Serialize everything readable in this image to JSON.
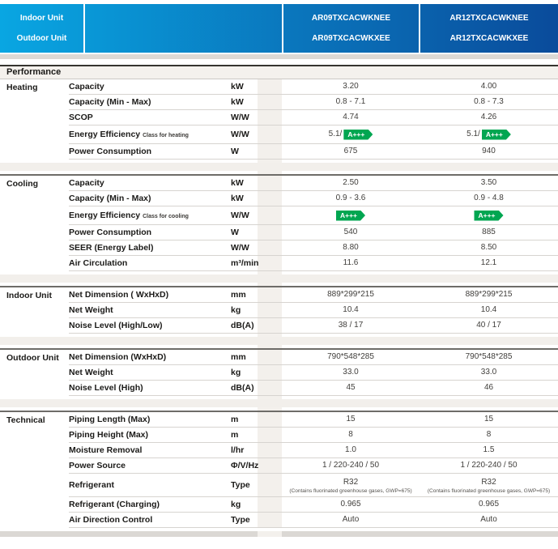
{
  "header": {
    "indoor_label": "Indoor Unit",
    "outdoor_label": "Outdoor Unit",
    "models": [
      {
        "indoor": "AR09TXCACWKNEE",
        "outdoor": "AR09TXCACWKXEE"
      },
      {
        "indoor": "AR12TXCACWKNEE",
        "outdoor": "AR12TXCACWKXEE"
      }
    ],
    "gradient_left": "#09a6e2",
    "gradient_right": "#0a4b9b"
  },
  "performance_title": "Performance",
  "energy_badge_color": "#00a651",
  "sections": [
    {
      "group": "Heating",
      "rows": [
        {
          "label": "Capacity",
          "unit": "kW",
          "values": [
            {
              "text": "3.20"
            },
            {
              "text": "4.00"
            }
          ]
        },
        {
          "label": "Capacity (Min - Max)",
          "unit": "kW",
          "values": [
            {
              "text": "0.8 - 7.1"
            },
            {
              "text": "0.8 - 7.3"
            }
          ]
        },
        {
          "label": "SCOP",
          "unit": "W/W",
          "values": [
            {
              "text": "4.74"
            },
            {
              "text": "4.26"
            }
          ]
        },
        {
          "label": "Energy Efficiency",
          "sublabel": "Class for heating",
          "unit": "W/W",
          "values": [
            {
              "text": "5.1/",
              "badge": "A+++"
            },
            {
              "text": "5.1/",
              "badge": "A+++"
            }
          ]
        },
        {
          "label": "Power Consumption",
          "unit": "W",
          "values": [
            {
              "text": "675"
            },
            {
              "text": "940"
            }
          ]
        }
      ]
    },
    {
      "group": "Cooling",
      "rows": [
        {
          "label": "Capacity",
          "unit": "kW",
          "values": [
            {
              "text": "2.50"
            },
            {
              "text": "3.50"
            }
          ]
        },
        {
          "label": "Capacity (Min - Max)",
          "unit": "kW",
          "values": [
            {
              "text": "0.9 - 3.6"
            },
            {
              "text": "0.9 - 4.8"
            }
          ]
        },
        {
          "label": "Energy Efficiency",
          "sublabel": "Class for cooling",
          "unit": "W/W",
          "values": [
            {
              "badge": "A+++"
            },
            {
              "badge": "A+++"
            }
          ]
        },
        {
          "label": "Power Consumption",
          "unit": "W",
          "values": [
            {
              "text": "540"
            },
            {
              "text": "885"
            }
          ]
        },
        {
          "label": "SEER (Energy Label)",
          "unit": "W/W",
          "values": [
            {
              "text": "8.80"
            },
            {
              "text": "8.50"
            }
          ]
        },
        {
          "label": "Air Circulation",
          "unit": "m³/min",
          "values": [
            {
              "text": "11.6"
            },
            {
              "text": "12.1"
            }
          ]
        }
      ]
    },
    {
      "group": "Indoor Unit",
      "rows": [
        {
          "label": "Net Dimension ( WxHxD)",
          "unit": "mm",
          "values": [
            {
              "text": "889*299*215"
            },
            {
              "text": "889*299*215"
            }
          ]
        },
        {
          "label": "Net Weight",
          "unit": "kg",
          "values": [
            {
              "text": "10.4"
            },
            {
              "text": "10.4"
            }
          ]
        },
        {
          "label": "Noise Level (High/Low)",
          "unit": "dB(A)",
          "values": [
            {
              "text": "38 / 17"
            },
            {
              "text": "40 / 17"
            }
          ]
        }
      ]
    },
    {
      "group": "Outdoor Unit",
      "rows": [
        {
          "label": "Net Dimension (WxHxD)",
          "unit": "mm",
          "values": [
            {
              "text": "790*548*285"
            },
            {
              "text": "790*548*285"
            }
          ]
        },
        {
          "label": "Net Weight",
          "unit": "kg",
          "values": [
            {
              "text": "33.0"
            },
            {
              "text": "33.0"
            }
          ]
        },
        {
          "label": "Noise Level (High)",
          "unit": "dB(A)",
          "values": [
            {
              "text": "45"
            },
            {
              "text": "46"
            }
          ]
        }
      ]
    },
    {
      "group": "Technical",
      "rows": [
        {
          "label": "Piping Length (Max)",
          "unit": "m",
          "values": [
            {
              "text": "15"
            },
            {
              "text": "15"
            }
          ]
        },
        {
          "label": "Piping Height (Max)",
          "unit": "m",
          "values": [
            {
              "text": "8"
            },
            {
              "text": "8"
            }
          ]
        },
        {
          "label": "Moisture Removal",
          "unit": "l/hr",
          "values": [
            {
              "text": "1.0"
            },
            {
              "text": "1.5"
            }
          ]
        },
        {
          "label": "Power Source",
          "unit": "Φ/V/Hz",
          "values": [
            {
              "text": "1 / 220-240 / 50"
            },
            {
              "text": "1 / 220-240 / 50"
            }
          ]
        },
        {
          "label": "Refrigerant",
          "unit": "Type",
          "values": [
            {
              "text": "R32",
              "note": "(Contains fluorinated greenhouse gases, GWP=675)"
            },
            {
              "text": "R32",
              "note": "(Contains fluorinated greenhouse gases, GWP=675)"
            }
          ]
        },
        {
          "label": "Refrigerant (Charging)",
          "unit": "kg",
          "values": [
            {
              "text": "0.965"
            },
            {
              "text": "0.965"
            }
          ]
        },
        {
          "label": "Air Direction Control",
          "unit": "Type",
          "values": [
            {
              "text": "Auto"
            },
            {
              "text": "Auto"
            }
          ]
        }
      ]
    }
  ]
}
